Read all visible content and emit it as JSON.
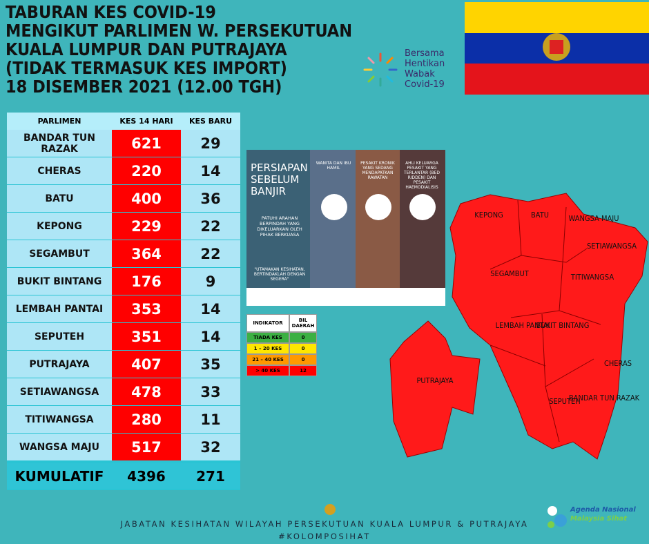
{
  "header": {
    "title": [
      "TABURAN KES COVID-19",
      "MENGIKUT PARLIMEN W. PERSEKUTUAN",
      "KUALA LUMPUR DAN PUTRAJAYA",
      "(TIDAK TERMASUK KES IMPORT)",
      "18 DISEMBER 2021 (12.00 TGH)"
    ],
    "logo_text": [
      "Bersama",
      "Hentikan",
      "Wabak",
      "Covid-19"
    ]
  },
  "table": {
    "headers": [
      "PARLIMEN",
      "KES 14 HARI",
      "KES BARU"
    ],
    "rows": [
      [
        "BANDAR TUN RAZAK",
        "621",
        "29"
      ],
      [
        "CHERAS",
        "220",
        "14"
      ],
      [
        "BATU",
        "400",
        "36"
      ],
      [
        "KEPONG",
        "229",
        "22"
      ],
      [
        "SEGAMBUT",
        "364",
        "22"
      ],
      [
        "BUKIT BINTANG",
        "176",
        "9"
      ],
      [
        "LEMBAH PANTAI",
        "353",
        "14"
      ],
      [
        "SEPUTEH",
        "351",
        "14"
      ],
      [
        "PUTRAJAYA",
        "407",
        "35"
      ],
      [
        "SETIAWANGSA",
        "478",
        "33"
      ],
      [
        "TITIWANGSA",
        "280",
        "11"
      ],
      [
        "WANGSA MAJU",
        "517",
        "32"
      ]
    ],
    "total": [
      "KUMULATIF",
      "4396",
      "271"
    ]
  },
  "poster": {
    "title": "PERSIAPAN SEBELUM BANJIR",
    "instruction": "PATUHI ARAHAN BERPINDAH YANG DIKELUARKAN OLEH PIHAK BERKUASA",
    "quote": "\"UTAMAKAN KESIHATAN, BERTINDAKLAH DENGAN SEGERA\"",
    "groups": [
      "WANITA DAN IBU HAMIL",
      "PESAKIT KRONIK YANG SEDANG MENDAPATKAN RAWATAN",
      "AHLI KELUARGA PESAKIT YANG TERLANTAR (BED RIDDEN) DAN PESAKIT HAEMODIALISIS"
    ]
  },
  "indicator": {
    "headers": [
      "INDIKATOR",
      "BIL DAERAH"
    ],
    "rows": [
      [
        "TIADA KES",
        "0"
      ],
      [
        "1 – 20 KES",
        "0"
      ],
      [
        "21 – 40 KES",
        "0"
      ],
      [
        "> 40 KES",
        "12"
      ]
    ]
  },
  "map": {
    "labels": [
      "KEPONG",
      "BATU",
      "WANGSA MAJU",
      "SETIAWANGSA",
      "SEGAMBUT",
      "TITIWANGSA",
      "LEMBAH PANTAI",
      "BUKIT BINTANG",
      "CHERAS",
      "PUTRAJAYA",
      "SEPUTEH",
      "BANDAR TUN RAZAK"
    ]
  },
  "footer": {
    "department": "JABATAN KESIHATAN WILAYAH PERSEKUTUAN KUALA LUMPUR & PUTRAJAYA",
    "hashtag": "#KOLOMPOSIHAT",
    "agenda": [
      "Agenda Nasional",
      "Malaysia Sihat"
    ]
  }
}
